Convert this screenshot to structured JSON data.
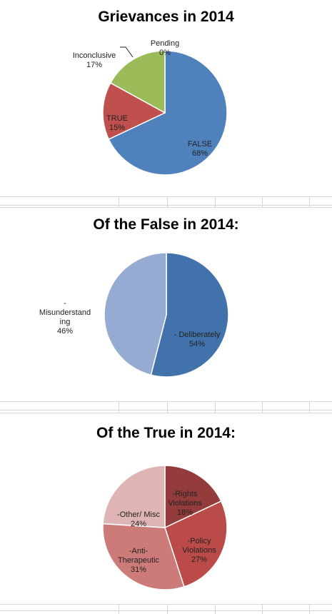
{
  "chart_data": [
    {
      "type": "pie",
      "title": "Grievances in 2014",
      "slices": [
        {
          "label": "Pending",
          "value": 0,
          "display": "0%",
          "color": "#4f81bd"
        },
        {
          "label": "FALSE",
          "value": 68,
          "display": "68%",
          "color": "#4f81bd"
        },
        {
          "label": "TRUE",
          "value": 15,
          "display": "15%",
          "color": "#c0504d"
        },
        {
          "label": "Inconclusive",
          "value": 17,
          "display": "17%",
          "color": "#9bbb59"
        }
      ],
      "legend": "none"
    },
    {
      "type": "pie",
      "title": "Of the False in 2014:",
      "slices": [
        {
          "label": "- Deliberately",
          "value": 54,
          "display": "54%",
          "color": "#4272ab"
        },
        {
          "label": "- Misunderstanding",
          "label_lines": [
            "-",
            "Misunderstand",
            "ing"
          ],
          "value": 46,
          "display": "46%",
          "color": "#95abd1"
        }
      ],
      "legend": "none"
    },
    {
      "type": "pie",
      "title": "Of the True in 2014:",
      "slices": [
        {
          "label": "-Rights Violations",
          "label_lines": [
            "-Rights",
            "Violations"
          ],
          "value": 18,
          "display": "18%",
          "color": "#933c3b"
        },
        {
          "label": "-Policy Violations",
          "label_lines": [
            "-Policy",
            "Violations"
          ],
          "value": 27,
          "display": "27%",
          "color": "#ba4b48"
        },
        {
          "label": "-Anti- Therapeutic",
          "label_lines": [
            "-Anti-",
            "Therapeutic"
          ],
          "value": 31,
          "display": "31%",
          "color": "#cd7b79"
        },
        {
          "label": "-Other/ Misc",
          "value": 24,
          "display": "24%",
          "color": "#deb5b4"
        }
      ],
      "legend": "none"
    }
  ]
}
